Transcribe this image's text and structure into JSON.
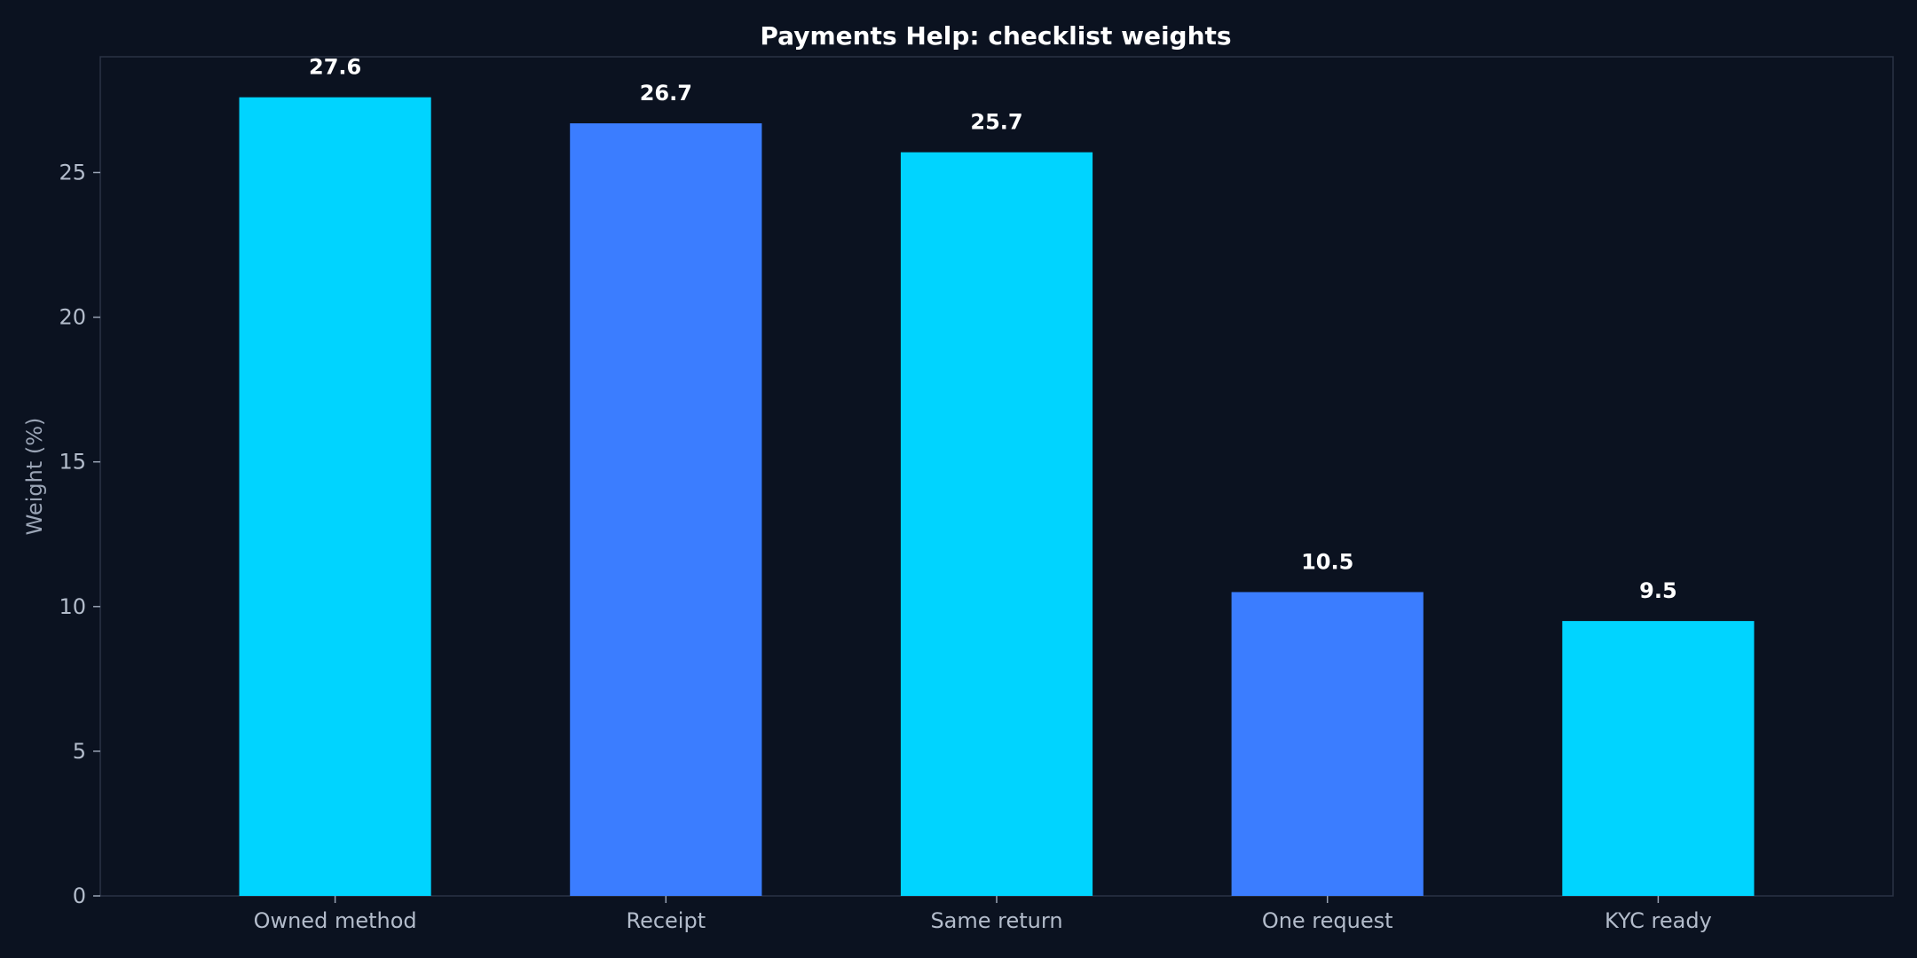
{
  "chart_data": {
    "type": "bar",
    "title": "Payments Help: checklist weights",
    "xlabel": "",
    "ylabel": "Weight (%)",
    "categories": [
      "Owned method",
      "Receipt",
      "Same return",
      "One request",
      "KYC ready"
    ],
    "values": [
      27.6,
      26.7,
      25.7,
      10.5,
      9.5
    ],
    "value_labels": [
      "27.6",
      "26.7",
      "25.7",
      "10.5",
      "9.5"
    ],
    "ylim": [
      0,
      29
    ],
    "yticks": [
      0,
      5,
      10,
      15,
      20,
      25
    ],
    "grid": false,
    "legend": "none",
    "colors": {
      "background": "#0b1220",
      "bar_primary": "#00d4ff",
      "bar_secondary": "#3b7dff",
      "axis": "#2a3344"
    },
    "bar_colors": [
      "#00d4ff",
      "#3b7dff",
      "#00d4ff",
      "#3b7dff",
      "#00d4ff"
    ]
  }
}
